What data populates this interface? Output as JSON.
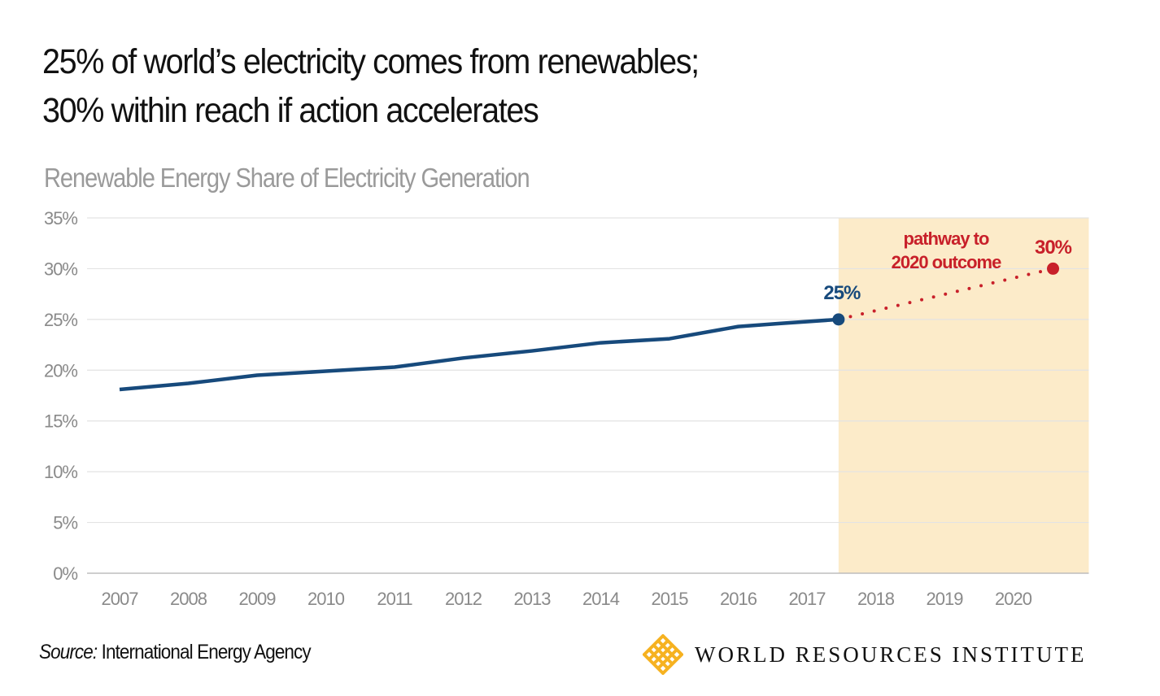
{
  "title_line1": "25% of world’s electricity comes from renewables;",
  "title_line2": "30% within reach if action accelerates",
  "chart_data": {
    "type": "line",
    "title": "Renewable Energy Share of Electricity Generation",
    "xlabel": "",
    "ylabel": "",
    "ylim": [
      0,
      35
    ],
    "y_ticks": [
      "0%",
      "5%",
      "10%",
      "15%",
      "20%",
      "25%",
      "30%",
      "35%"
    ],
    "x_ticks": [
      "2007",
      "2008",
      "2009",
      "2010",
      "2011",
      "2012",
      "2013",
      "2014",
      "2015",
      "2016",
      "2017",
      "2018",
      "2019",
      "2020"
    ],
    "grid": true,
    "series": [
      {
        "x": [
          2007,
          2008,
          2009,
          2010,
          2011,
          2012,
          2013,
          2014,
          2015,
          2016,
          2016.6,
          2017.46
        ],
        "values": [
          18.1,
          18.7,
          19.5,
          19.9,
          20.3,
          21.2,
          21.9,
          22.7,
          23.1,
          24.3,
          24.6,
          25.0
        ],
        "color": "#174a7c"
      },
      {
        "x": [
          2017.46,
          2020.58
        ],
        "values": [
          25.0,
          30.0
        ],
        "color": "#c8202a",
        "style": "dotted"
      }
    ],
    "shaded_region": {
      "from": 2017.46,
      "to": 2021.1,
      "color": "#fcebc9"
    },
    "annotations": {
      "start_label": "25%",
      "end_label": "30%",
      "pathway_line1": "pathway to",
      "pathway_line2": "2020 outcome"
    }
  },
  "source_prefix": "Source:",
  "source_text": " International Energy Agency",
  "logo_text": "WORLD RESOURCES INSTITUTE",
  "colors": {
    "primary": "#174a7c",
    "accent": "#c8202a",
    "shade": "#fcebc9",
    "logo": "#f6b221"
  }
}
